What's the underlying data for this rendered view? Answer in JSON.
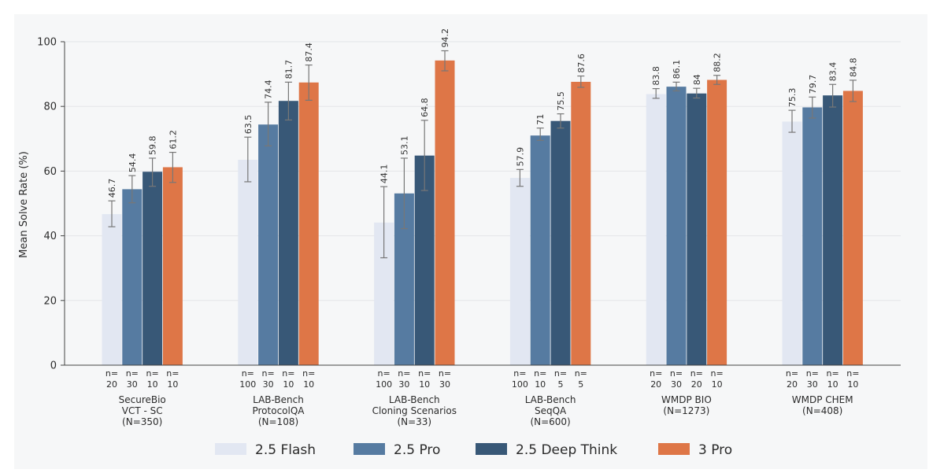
{
  "chart_data": {
    "type": "bar",
    "title": "",
    "xlabel": "",
    "ylabel": "Mean Solve Rate (%)",
    "ylim": [
      0,
      100
    ],
    "yticks": [
      0,
      20,
      40,
      60,
      80,
      100
    ],
    "grid": true,
    "legend_position": "bottom",
    "categories": [
      [
        "SecureBio",
        "VCT - SC",
        "(N=350)"
      ],
      [
        "LAB-Bench",
        "ProtocolQA",
        "(N=108)"
      ],
      [
        "LAB-Bench",
        "Cloning Scenarios",
        "(N=33)"
      ],
      [
        "LAB-Bench",
        "SeqQA",
        "(N=600)"
      ],
      [
        "WMDP BIO",
        "(N=1273)"
      ],
      [
        "WMDP CHEM",
        "(N=408)"
      ]
    ],
    "series": [
      {
        "name": "2.5 Flash",
        "color": "#e2e7f2",
        "values": [
          46.7,
          63.5,
          44.1,
          57.9,
          83.8,
          75.3
        ],
        "error_low": [
          42.8,
          56.7,
          33.2,
          55.3,
          82.5,
          72.0
        ],
        "error_high": [
          50.8,
          70.5,
          55.2,
          60.5,
          85.5,
          78.8
        ],
        "n": [
          "20",
          "100",
          "100",
          "100",
          "20",
          "20"
        ]
      },
      {
        "name": "2.5 Pro",
        "color": "#567ba1",
        "values": [
          54.4,
          74.4,
          53.1,
          71,
          86.1,
          79.7
        ],
        "error_low": [
          50.2,
          67.8,
          42.2,
          69.5,
          84.8,
          76.4
        ],
        "error_high": [
          58.6,
          81.3,
          64.0,
          73.3,
          87.5,
          82.9
        ],
        "n": [
          "30",
          "30",
          "30",
          "10",
          "30",
          "30"
        ]
      },
      {
        "name": "2.5 Deep Think",
        "color": "#385877",
        "values": [
          59.8,
          81.7,
          64.8,
          75.5,
          84,
          83.4
        ],
        "error_low": [
          55.3,
          75.8,
          54.0,
          73.3,
          82.6,
          79.8
        ],
        "error_high": [
          64.0,
          87.5,
          75.7,
          77.7,
          85.6,
          86.8
        ],
        "n": [
          "10",
          "10",
          "10",
          "5",
          "20",
          "10"
        ]
      },
      {
        "name": "3 Pro",
        "color": "#de7647",
        "values": [
          61.2,
          87.4,
          94.2,
          87.6,
          88.2,
          84.8
        ],
        "error_low": [
          56.5,
          81.9,
          91.0,
          85.9,
          86.8,
          81.5
        ],
        "error_high": [
          65.8,
          92.8,
          97.2,
          89.4,
          89.6,
          88.1
        ],
        "n": [
          "10",
          "10",
          "30",
          "5",
          "10",
          "10"
        ]
      }
    ]
  }
}
